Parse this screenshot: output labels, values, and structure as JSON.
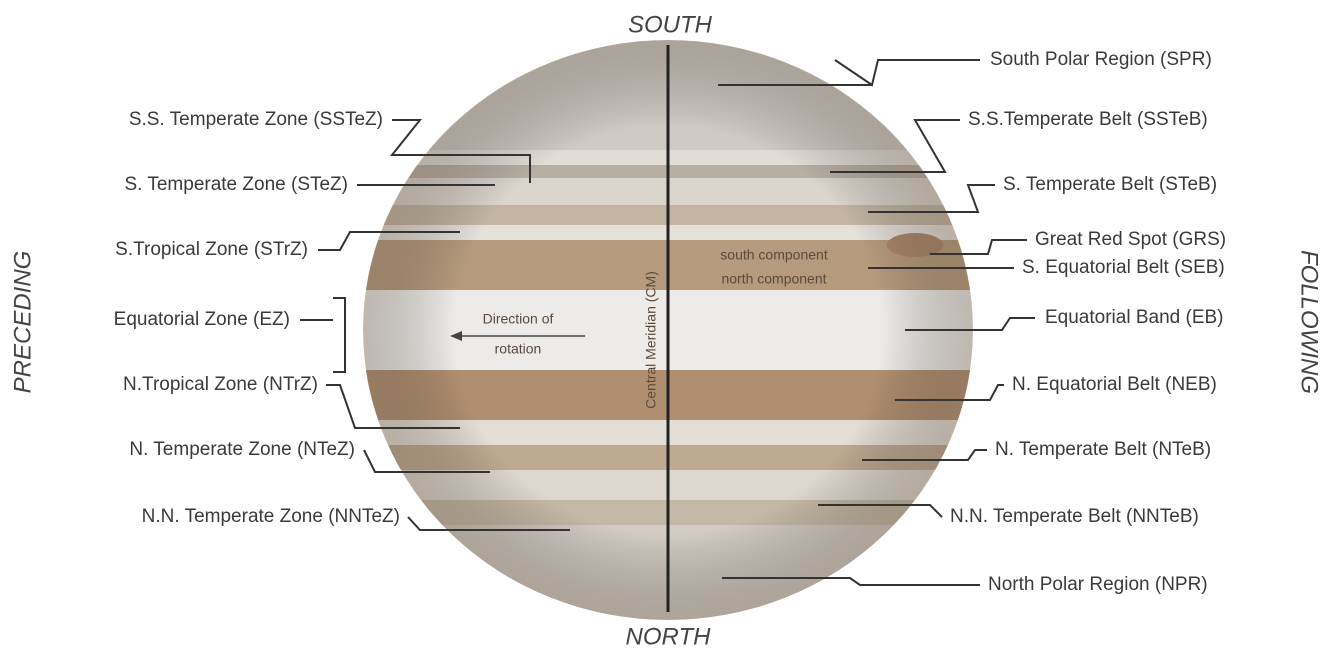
{
  "orientation": {
    "top": "SOUTH",
    "bottom": "NORTH",
    "left": "PRECEDING",
    "right": "FOLLOWING"
  },
  "central_meridian": "Central Meridian (CM)",
  "rotation": [
    "Direction of",
    "rotation"
  ],
  "seb_components": [
    "south component",
    "north component"
  ],
  "left_labels": [
    "S.S. Temperate Zone (SSTeZ)",
    "S. Temperate Zone (STeZ)",
    "S.Tropical Zone (STrZ)",
    "Equatorial Zone (EZ)",
    "N.Tropical Zone (NTrZ)",
    "N. Temperate Zone (NTeZ)",
    "N.N. Temperate Zone (NNTeZ)"
  ],
  "right_labels": [
    "South Polar Region (SPR)",
    "S.S.Temperate Belt (SSTeB)",
    "S. Temperate Belt (STeB)",
    "Great Red Spot (GRS)",
    "S. Equatorial Belt (SEB)",
    "Equatorial Band (EB)",
    "N. Equatorial Belt (NEB)",
    "N. Temperate Belt (NTeB)",
    "N.N. Temperate Belt (NNTeB)",
    "North Polar Region (NPR)"
  ]
}
